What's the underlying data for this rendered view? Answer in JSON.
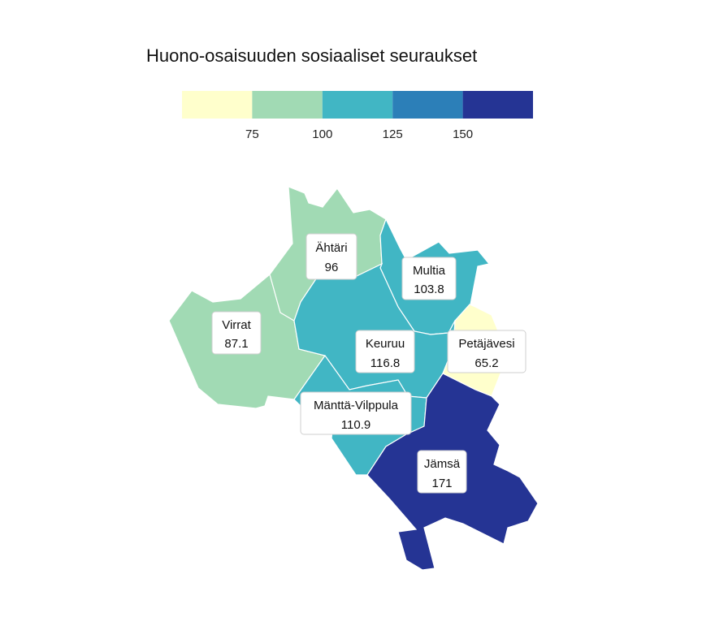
{
  "title": "Huono-osaisuuden sosiaaliset seuraukset",
  "legend": {
    "bins": [
      {
        "color": "#ffffcc"
      },
      {
        "color": "#a1dab4"
      },
      {
        "color": "#41b6c4"
      },
      {
        "color": "#2c7fb8"
      },
      {
        "color": "#253494"
      }
    ],
    "ticks": [
      "75",
      "100",
      "125",
      "150"
    ]
  },
  "regions": [
    {
      "id": "ahtari",
      "name": "Ähtäri",
      "value": "96",
      "color": "#a1dab4"
    },
    {
      "id": "multia",
      "name": "Multia",
      "value": "103.8",
      "color": "#41b6c4"
    },
    {
      "id": "virrat",
      "name": "Virrat",
      "value": "87.1",
      "color": "#a1dab4"
    },
    {
      "id": "keuruu",
      "name": "Keuruu",
      "value": "116.8",
      "color": "#41b6c4"
    },
    {
      "id": "petajavesi",
      "name": "Petäjävesi",
      "value": "65.2",
      "color": "#ffffcc"
    },
    {
      "id": "mantta",
      "name": "Mänttä-Vilppula",
      "value": "110.9",
      "color": "#41b6c4"
    },
    {
      "id": "jamsa",
      "name": "Jämsä",
      "value": "171",
      "color": "#253494"
    }
  ]
}
